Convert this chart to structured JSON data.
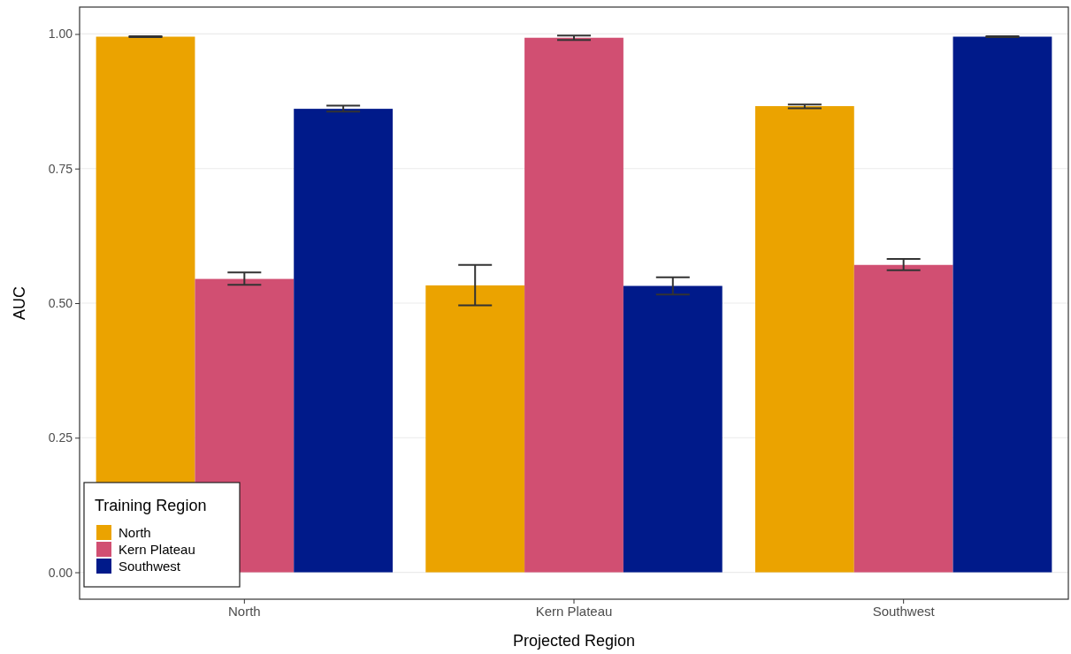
{
  "chart_data": {
    "type": "bar",
    "xlabel": "Projected Region",
    "ylabel": "AUC",
    "legend_title": "Training Region",
    "categories": [
      "North",
      "Kern Plateau",
      "Southwest"
    ],
    "series": [
      {
        "name": "North",
        "color": "#eba300",
        "values": [
          0.995,
          0.533,
          0.866
        ],
        "errors": [
          [
            0.994,
            0.996
          ],
          [
            0.496,
            0.571
          ],
          [
            0.862,
            0.869
          ]
        ]
      },
      {
        "name": "Kern Plateau",
        "color": "#d14f72",
        "values": [
          0.545,
          0.993,
          0.571
        ],
        "errors": [
          [
            0.534,
            0.557
          ],
          [
            0.989,
            0.997
          ],
          [
            0.561,
            0.582
          ]
        ]
      },
      {
        "name": "Southwest",
        "color": "#001a8a",
        "values": [
          0.861,
          0.532,
          0.995
        ],
        "errors": [
          [
            0.856,
            0.867
          ],
          [
            0.516,
            0.548
          ],
          [
            0.994,
            0.996
          ]
        ]
      }
    ],
    "ylim": [
      -0.05,
      1.05
    ],
    "yticks": [
      {
        "value": 0,
        "label": "0.00"
      },
      {
        "value": 0.25,
        "label": "0.25"
      },
      {
        "value": 0.5,
        "label": "0.50"
      },
      {
        "value": 0.75,
        "label": "0.75"
      },
      {
        "value": 1,
        "label": "1.00"
      }
    ],
    "grid": "y",
    "legend": "bottom left"
  }
}
